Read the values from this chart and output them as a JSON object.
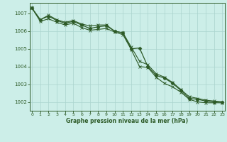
{
  "xlabel": "Graphe pression niveau de la mer (hPa)",
  "background_color": "#cceee8",
  "grid_color": "#aad4ce",
  "line_color": "#2d5a27",
  "ylim": [
    1001.5,
    1007.6
  ],
  "xlim": [
    -0.3,
    23.3
  ],
  "yticks": [
    1002,
    1003,
    1004,
    1005,
    1006,
    1007
  ],
  "xticks": [
    0,
    1,
    2,
    3,
    4,
    5,
    6,
    7,
    8,
    9,
    10,
    11,
    12,
    13,
    14,
    15,
    16,
    17,
    18,
    19,
    20,
    21,
    22,
    23
  ],
  "hours": [
    0,
    1,
    2,
    3,
    4,
    5,
    6,
    7,
    8,
    9,
    10,
    11,
    12,
    13,
    14,
    15,
    16,
    17,
    18,
    19,
    20,
    21,
    22,
    23
  ],
  "line_main": [
    1007.3,
    1006.65,
    1006.85,
    1006.6,
    1006.45,
    1006.55,
    1006.35,
    1006.15,
    1006.25,
    1006.3,
    1006.0,
    1005.9,
    1005.0,
    1005.05,
    1004.0,
    1003.5,
    1003.35,
    1003.05,
    1002.65,
    1002.2,
    1002.15,
    1002.05,
    1002.0,
    1002.0
  ],
  "line_high": [
    1007.3,
    1006.65,
    1006.9,
    1006.65,
    1006.5,
    1006.6,
    1006.4,
    1006.3,
    1006.35,
    1006.35,
    1006.0,
    1005.9,
    1005.1,
    1004.3,
    1004.1,
    1003.6,
    1003.4,
    1003.1,
    1002.7,
    1002.3,
    1002.2,
    1002.1,
    1002.05,
    1002.0
  ],
  "line_low": [
    1007.3,
    1006.55,
    1006.7,
    1006.5,
    1006.35,
    1006.45,
    1006.2,
    1006.05,
    1006.1,
    1006.15,
    1005.95,
    1005.8,
    1004.95,
    1004.0,
    1003.95,
    1003.4,
    1003.05,
    1002.85,
    1002.55,
    1002.15,
    1002.0,
    1001.95,
    1001.95,
    1001.95
  ]
}
